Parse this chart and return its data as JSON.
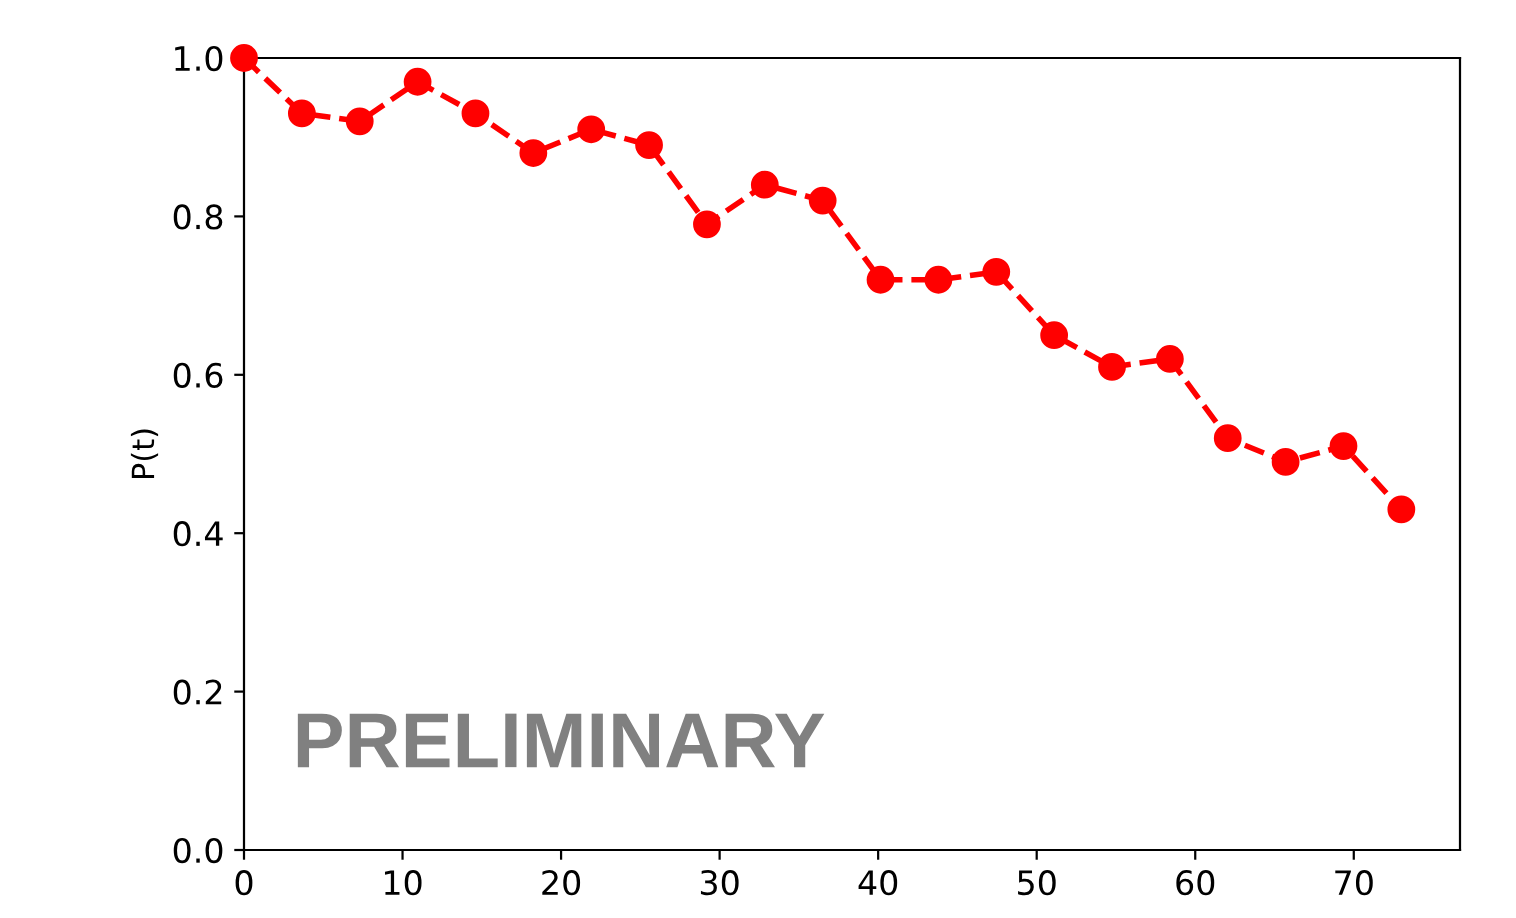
{
  "chart_data": {
    "type": "line",
    "ylabel": "P(t)",
    "x": [
      0,
      3.65,
      7.3,
      10.95,
      14.6,
      18.25,
      21.9,
      25.55,
      29.2,
      32.85,
      36.5,
      40.15,
      43.8,
      47.45,
      51.1,
      54.75,
      58.4,
      62.05,
      65.7,
      69.35,
      73
    ],
    "series": [
      {
        "color": "#ff0000",
        "values": [
          1.0,
          0.93,
          0.92,
          0.97,
          0.93,
          0.88,
          0.91,
          0.89,
          0.79,
          0.84,
          0.82,
          0.72,
          0.72,
          0.73,
          0.65,
          0.61,
          0.62,
          0.52,
          0.49,
          0.51,
          0.43
        ]
      }
    ],
    "marker": "circle",
    "line_style": "dashed",
    "xlim": [
      0,
      76.7
    ],
    "ylim": [
      0,
      1.0
    ],
    "xticks": [
      0,
      10,
      20,
      30,
      40,
      50,
      60,
      70
    ],
    "yticks": [
      {
        "value": 0,
        "label": "0.0"
      },
      0.2,
      0.4,
      0.6,
      0.8,
      {
        "value": 1,
        "label": "1.0"
      }
    ],
    "annotations": [
      "PRELIMINARY"
    ],
    "grid": false
  }
}
